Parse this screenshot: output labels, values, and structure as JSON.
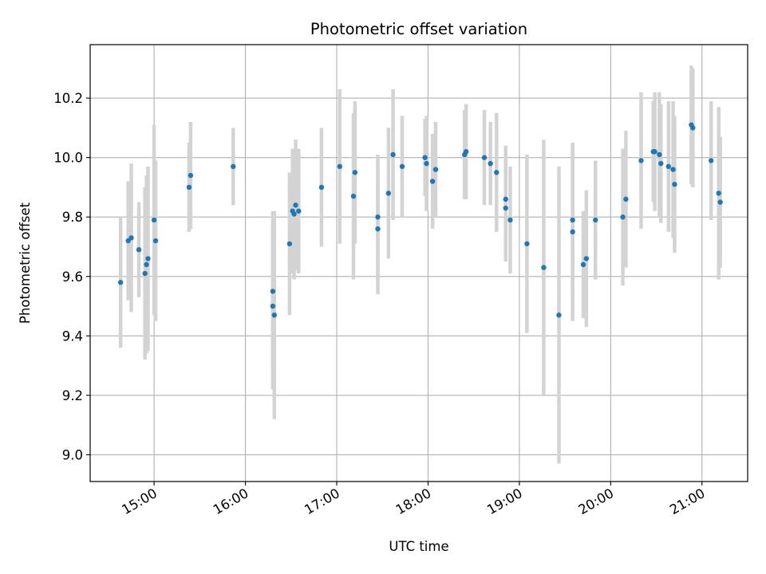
{
  "chart_data": {
    "type": "scatter",
    "title": "Photometric offset variation",
    "xlabel": "UTC time",
    "ylabel": "Photometric offset",
    "x_tick_labels": [
      "15:00",
      "16:00",
      "17:00",
      "18:00",
      "19:00",
      "20:00",
      "21:00"
    ],
    "y_tick_labels": [
      "9.0",
      "9.2",
      "9.4",
      "9.6",
      "9.8",
      "10.0",
      "10.2"
    ],
    "y_ticks": [
      9.0,
      9.2,
      9.4,
      9.6,
      9.8,
      10.0,
      10.2
    ],
    "xlim": [
      "14:18",
      "21:30"
    ],
    "ylim": [
      8.91,
      10.38
    ],
    "grid": true,
    "marker_color": "#1f77b4",
    "errorbar_color": "#d3d3d3",
    "series": [
      {
        "x": [
          "14:38",
          "14:43",
          "14:45",
          "14:50",
          "14:54",
          "14:55",
          "14:56",
          "15:00",
          "15:01",
          "15:23",
          "15:24",
          "15:52",
          "16:18",
          "16:18",
          "16:19",
          "16:29",
          "16:31",
          "16:32",
          "16:33",
          "16:35",
          "16:50",
          "17:02",
          "17:11",
          "17:12",
          "17:27",
          "17:27",
          "17:34",
          "17:37",
          "17:43",
          "17:58",
          "17:59",
          "18:03",
          "18:05",
          "18:24",
          "18:25",
          "18:37",
          "18:41",
          "18:45",
          "18:51",
          "18:51",
          "18:54",
          "19:05",
          "19:16",
          "19:26",
          "19:35",
          "19:35",
          "19:42",
          "19:44",
          "19:50",
          "20:08",
          "20:10",
          "20:20",
          "20:28",
          "20:29",
          "20:32",
          "20:33",
          "20:38",
          "20:41",
          "20:42",
          "20:53",
          "20:54",
          "21:06",
          "21:11",
          "21:12"
        ],
        "y": [
          9.58,
          9.72,
          9.73,
          9.69,
          9.61,
          9.64,
          9.66,
          9.79,
          9.72,
          9.9,
          9.94,
          9.97,
          9.55,
          9.5,
          9.47,
          9.71,
          9.82,
          9.81,
          9.84,
          9.82,
          9.9,
          9.97,
          9.87,
          9.95,
          9.76,
          9.8,
          9.88,
          10.01,
          9.97,
          10.0,
          9.98,
          9.92,
          9.96,
          10.01,
          10.02,
          10.0,
          9.98,
          9.95,
          9.83,
          9.86,
          9.79,
          9.71,
          9.63,
          9.47,
          9.75,
          9.79,
          9.64,
          9.66,
          9.79,
          9.8,
          9.86,
          9.99,
          10.02,
          10.02,
          10.01,
          9.98,
          9.97,
          9.96,
          9.91,
          10.11,
          10.1,
          9.99,
          9.88,
          9.85
        ],
        "yerr": [
          0.22,
          0.2,
          0.25,
          0.16,
          0.29,
          0.3,
          0.31,
          0.32,
          0.27,
          0.15,
          0.18,
          0.13,
          0.27,
          0.28,
          0.35,
          0.24,
          0.21,
          0.22,
          0.22,
          0.21,
          0.2,
          0.26,
          0.28,
          0.24,
          0.22,
          0.21,
          0.22,
          0.22,
          0.17,
          0.13,
          0.16,
          0.16,
          0.16,
          0.15,
          0.16,
          0.16,
          0.14,
          0.2,
          0.18,
          0.18,
          0.18,
          0.3,
          0.43,
          0.5,
          0.3,
          0.25,
          0.18,
          0.23,
          0.2,
          0.23,
          0.23,
          0.23,
          0.17,
          0.2,
          0.21,
          0.2,
          0.22,
          0.23,
          0.23,
          0.2,
          0.2,
          0.2,
          0.29,
          0.22
        ]
      }
    ]
  }
}
